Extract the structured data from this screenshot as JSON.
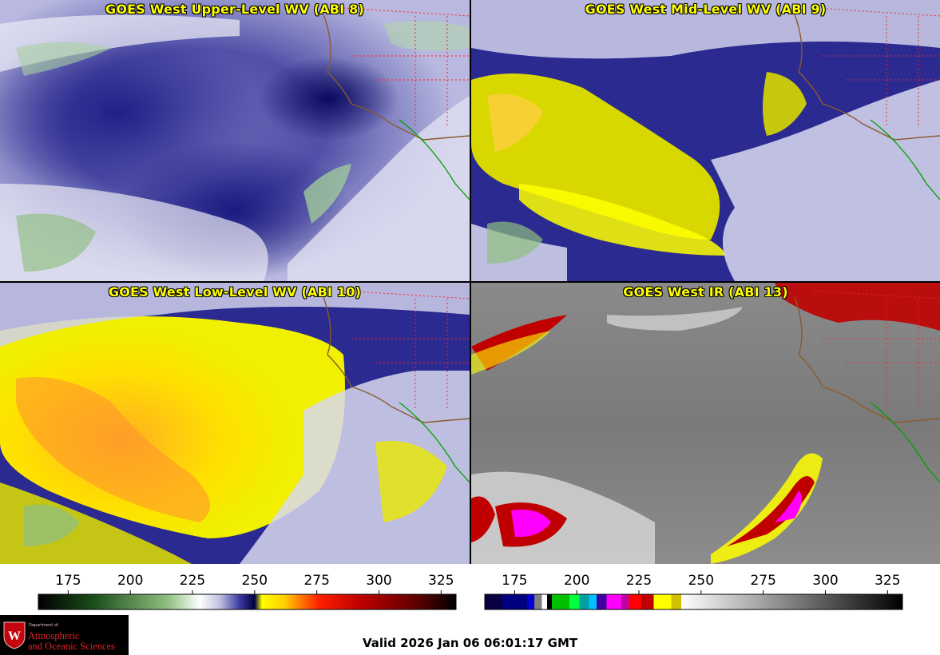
{
  "panels": [
    {
      "title": "GOES West Upper-Level WV (ABI 8)"
    },
    {
      "title": "GOES West Mid-Level WV (ABI 9)"
    },
    {
      "title": "GOES West Low-Level WV (ABI 10)"
    },
    {
      "title": "GOES West IR (ABI 13)"
    }
  ],
  "colorbars": {
    "wv": {
      "ticks": [
        "175",
        "200",
        "225",
        "250",
        "275",
        "300",
        "325"
      ],
      "tick_values": [
        175,
        200,
        225,
        250,
        275,
        300,
        325
      ],
      "range": [
        163,
        331
      ],
      "stops": [
        {
          "v": 163,
          "c": "#000000"
        },
        {
          "v": 185,
          "c": "#1a4d1a"
        },
        {
          "v": 215,
          "c": "#8fbf7f"
        },
        {
          "v": 228,
          "c": "#ffffff"
        },
        {
          "v": 236,
          "c": "#c0c0e0"
        },
        {
          "v": 244,
          "c": "#3a3aa0"
        },
        {
          "v": 250,
          "c": "#000040"
        },
        {
          "v": 253,
          "c": "#ffff00"
        },
        {
          "v": 262,
          "c": "#ffd000"
        },
        {
          "v": 268,
          "c": "#ff8000"
        },
        {
          "v": 276,
          "c": "#ff2000"
        },
        {
          "v": 292,
          "c": "#c00000"
        },
        {
          "v": 315,
          "c": "#600000"
        },
        {
          "v": 331,
          "c": "#000000"
        }
      ]
    },
    "ir": {
      "ticks": [
        "175",
        "200",
        "225",
        "250",
        "275",
        "300",
        "325"
      ],
      "tick_values": [
        175,
        200,
        225,
        250,
        275,
        300,
        325
      ],
      "range": [
        163,
        331
      ],
      "stops": [
        {
          "v": 163,
          "c": "#080040",
          "hard": true
        },
        {
          "v": 170,
          "c": "#000080",
          "hard": true
        },
        {
          "v": 180,
          "c": "#0000d0",
          "hard": true
        },
        {
          "v": 183,
          "c": "#808080",
          "hard": true
        },
        {
          "v": 186,
          "c": "#ffffff",
          "hard": true
        },
        {
          "v": 188,
          "c": "#000000",
          "hard": true
        },
        {
          "v": 190,
          "c": "#00c000",
          "hard": true
        },
        {
          "v": 197,
          "c": "#00ff40",
          "hard": true
        },
        {
          "v": 201,
          "c": "#00a0a0",
          "hard": true
        },
        {
          "v": 205,
          "c": "#00c0ff",
          "hard": true
        },
        {
          "v": 208,
          "c": "#4000a0",
          "hard": true
        },
        {
          "v": 212,
          "c": "#ff00ff",
          "hard": true
        },
        {
          "v": 218,
          "c": "#c000a0",
          "hard": true
        },
        {
          "v": 221,
          "c": "#ff0000",
          "hard": true
        },
        {
          "v": 226,
          "c": "#c00000",
          "hard": true
        },
        {
          "v": 231,
          "c": "#ffff00",
          "hard": true
        },
        {
          "v": 238,
          "c": "#d0c000",
          "hard": true
        },
        {
          "v": 242,
          "c": "#ffffff"
        },
        {
          "v": 331,
          "c": "#000000"
        }
      ]
    }
  },
  "logo": {
    "small": "Department of",
    "line1": "Atmospheric",
    "line2": "and Oceanic Sciences"
  },
  "footer": {
    "valid": "Valid 2026 Jan 06 06:01:17 GMT"
  }
}
